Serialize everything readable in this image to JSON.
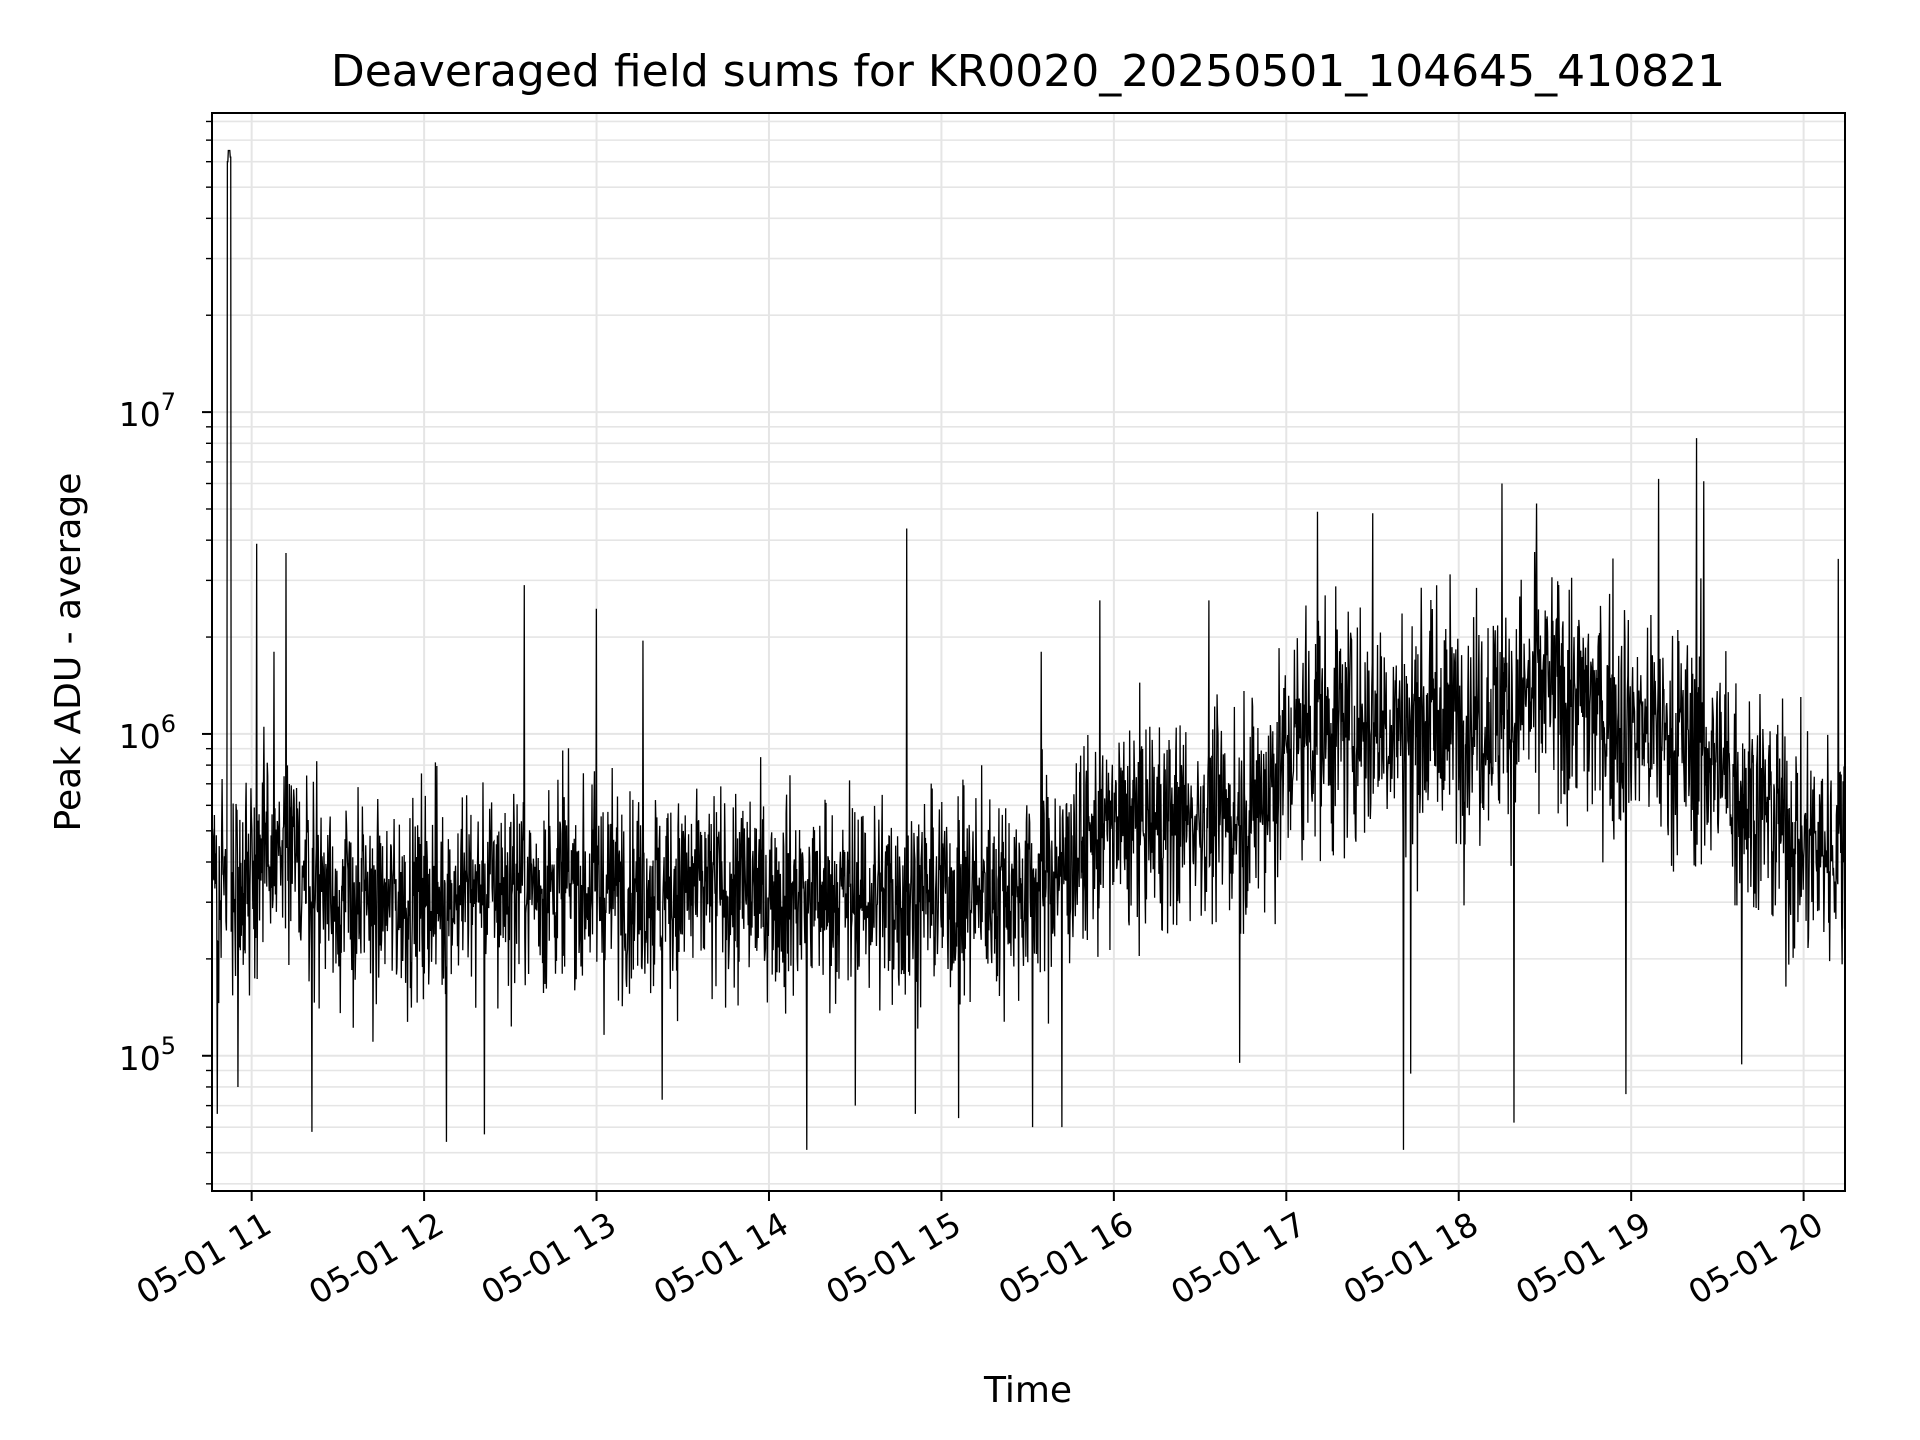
{
  "chart_data": {
    "type": "line",
    "title": "Deaveraged field sums for KR0020_20250501_104645_410821",
    "xlabel": "Time",
    "ylabel": "Peak ADU - average",
    "x_range": [
      "2025-05-01 10:46",
      "2025-05-01 20:14"
    ],
    "xlim_hours": [
      10.77,
      20.24
    ],
    "yscale": "log",
    "ylim": [
      38000,
      85000000
    ],
    "grid": "major and minor",
    "line_color": "#000000",
    "grid_color": "#e5e5e5",
    "x_ticks": [
      {
        "hour": 11,
        "label": "05-01 11"
      },
      {
        "hour": 12,
        "label": "05-01 12"
      },
      {
        "hour": 13,
        "label": "05-01 13"
      },
      {
        "hour": 14,
        "label": "05-01 14"
      },
      {
        "hour": 15,
        "label": "05-01 15"
      },
      {
        "hour": 16,
        "label": "05-01 16"
      },
      {
        "hour": 17,
        "label": "05-01 17"
      },
      {
        "hour": 18,
        "label": "05-01 18"
      },
      {
        "hour": 19,
        "label": "05-01 19"
      },
      {
        "hour": 20,
        "label": "05-01 20"
      }
    ],
    "y_ticks": [
      {
        "value": 100000,
        "base": "10",
        "exp": "5"
      },
      {
        "value": 1000000,
        "base": "10",
        "exp": "6"
      },
      {
        "value": 10000000,
        "base": "10",
        "exp": "7"
      }
    ],
    "series_stats": {
      "samples": 3400,
      "baseline_points": [
        {
          "hour": 10.77,
          "value": 350000
        },
        {
          "hour": 11.2,
          "value": 420000
        },
        {
          "hour": 11.6,
          "value": 290000
        },
        {
          "hour": 12.5,
          "value": 340000
        },
        {
          "hour": 13.5,
          "value": 330000
        },
        {
          "hour": 14.5,
          "value": 310000
        },
        {
          "hour": 15.5,
          "value": 330000
        },
        {
          "hour": 16.0,
          "value": 520000
        },
        {
          "hour": 16.8,
          "value": 560000
        },
        {
          "hour": 17.1,
          "value": 1050000
        },
        {
          "hour": 18.2,
          "value": 1150000
        },
        {
          "hour": 18.5,
          "value": 1400000
        },
        {
          "hour": 19.4,
          "value": 900000
        },
        {
          "hour": 20.0,
          "value": 440000
        },
        {
          "hour": 20.24,
          "value": 450000
        }
      ]
    },
    "spikes": [
      {
        "hour": 10.86,
        "value": 60000000
      },
      {
        "hour": 10.87,
        "value": 65000000
      },
      {
        "hour": 10.88,
        "value": 62000000
      },
      {
        "hour": 10.8,
        "value": 66000
      },
      {
        "hour": 10.92,
        "value": 80000
      },
      {
        "hour": 11.03,
        "value": 3900000
      },
      {
        "hour": 11.2,
        "value": 3650000
      },
      {
        "hour": 11.35,
        "value": 58000
      },
      {
        "hour": 11.13,
        "value": 1800000
      },
      {
        "hour": 12.13,
        "value": 54000
      },
      {
        "hour": 12.35,
        "value": 57000
      },
      {
        "hour": 12.58,
        "value": 2900000
      },
      {
        "hour": 13.0,
        "value": 2450000
      },
      {
        "hour": 13.27,
        "value": 1950000
      },
      {
        "hour": 13.38,
        "value": 73000
      },
      {
        "hour": 14.22,
        "value": 51000
      },
      {
        "hour": 14.5,
        "value": 70000
      },
      {
        "hour": 14.8,
        "value": 4350000
      },
      {
        "hour": 14.85,
        "value": 66000
      },
      {
        "hour": 15.1,
        "value": 64000
      },
      {
        "hour": 15.53,
        "value": 60000
      },
      {
        "hour": 15.58,
        "value": 1800000
      },
      {
        "hour": 15.7,
        "value": 60000
      },
      {
        "hour": 15.92,
        "value": 2600000
      },
      {
        "hour": 16.55,
        "value": 2600000
      },
      {
        "hour": 16.73,
        "value": 95000
      },
      {
        "hour": 17.18,
        "value": 4900000
      },
      {
        "hour": 17.5,
        "value": 4850000
      },
      {
        "hour": 17.68,
        "value": 51000
      },
      {
        "hour": 17.72,
        "value": 88000
      },
      {
        "hour": 18.25,
        "value": 6000000
      },
      {
        "hour": 18.32,
        "value": 62000
      },
      {
        "hour": 18.45,
        "value": 5200000
      },
      {
        "hour": 18.97,
        "value": 76000
      },
      {
        "hour": 19.16,
        "value": 6200000
      },
      {
        "hour": 19.38,
        "value": 8300000
      },
      {
        "hour": 19.42,
        "value": 6100000
      },
      {
        "hour": 19.64,
        "value": 94000
      },
      {
        "hour": 20.2,
        "value": 3500000
      }
    ]
  }
}
